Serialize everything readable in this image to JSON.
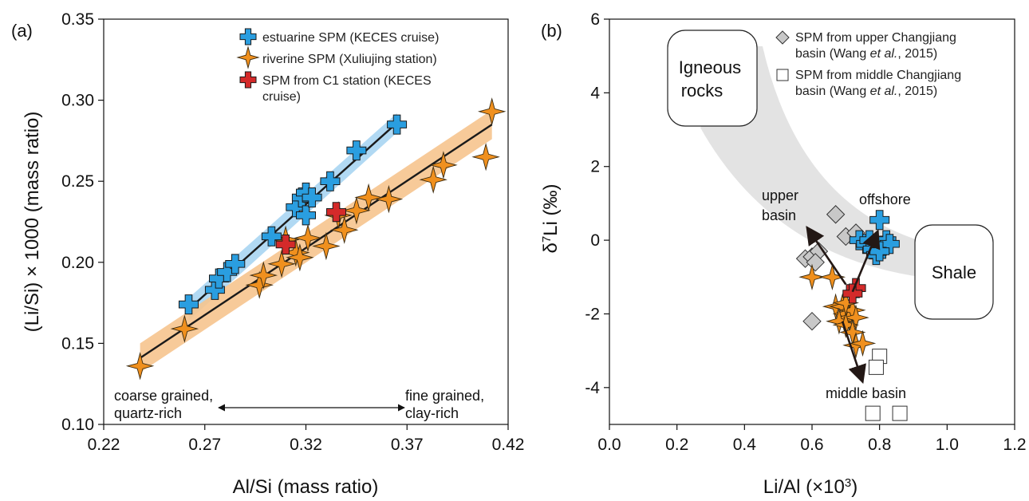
{
  "colors": {
    "estuarine": "#2a9ee0",
    "riverine": "#f0901e",
    "c1": "#d42a2a",
    "upper_basin": "#c8c8c8",
    "middle_basin": "#ffffff",
    "band_blue": "#a8d5f2",
    "band_orange": "#f6c48e",
    "field_gray": "#e3e3e3"
  },
  "chart_data": [
    {
      "type": "scatter",
      "panel_label": "(a)",
      "xlabel": "Al/Si (mass ratio)",
      "ylabel": "(Li/Si) × 1000 (mass ratio)",
      "xlim": [
        0.22,
        0.42
      ],
      "ylim": [
        0.1,
        0.35
      ],
      "xticks": [
        "0.22",
        "0.27",
        "0.32",
        "0.37",
        "0.42"
      ],
      "yticks": [
        "0.10",
        "0.15",
        "0.20",
        "0.25",
        "0.30",
        "0.35"
      ],
      "grid": false,
      "legend_position": "top-right",
      "series": [
        {
          "name": "estuarine SPM (KECES cruise)",
          "marker": "cross",
          "points": [
            [
              0.262,
              0.174
            ],
            [
              0.275,
              0.183
            ],
            [
              0.277,
              0.19
            ],
            [
              0.281,
              0.194
            ],
            [
              0.285,
              0.199
            ],
            [
              0.303,
              0.216
            ],
            [
              0.315,
              0.234
            ],
            [
              0.318,
              0.24
            ],
            [
              0.32,
              0.243
            ],
            [
              0.32,
              0.229
            ],
            [
              0.323,
              0.24
            ],
            [
              0.332,
              0.25
            ],
            [
              0.345,
              0.269
            ],
            [
              0.365,
              0.285
            ]
          ]
        },
        {
          "name": "riverine SPM (Xuliujing station)",
          "marker": "star",
          "points": [
            [
              0.238,
              0.136
            ],
            [
              0.26,
              0.159
            ],
            [
              0.297,
              0.186
            ],
            [
              0.299,
              0.192
            ],
            [
              0.308,
              0.199
            ],
            [
              0.31,
              0.214
            ],
            [
              0.315,
              0.206
            ],
            [
              0.317,
              0.203
            ],
            [
              0.321,
              0.215
            ],
            [
              0.33,
              0.21
            ],
            [
              0.336,
              0.229
            ],
            [
              0.339,
              0.22
            ],
            [
              0.345,
              0.232
            ],
            [
              0.351,
              0.24
            ],
            [
              0.361,
              0.239
            ],
            [
              0.383,
              0.251
            ],
            [
              0.388,
              0.26
            ],
            [
              0.409,
              0.265
            ],
            [
              0.412,
              0.293
            ]
          ]
        },
        {
          "name": "SPM from C1 station (KECES cruise)",
          "marker": "cross",
          "points": [
            [
              0.31,
              0.211
            ],
            [
              0.335,
              0.231
            ]
          ]
        }
      ],
      "fit_lines": [
        {
          "series": "estuarine SPM (KECES cruise)",
          "x": [
            0.262,
            0.365
          ],
          "y": [
            0.171,
            0.286
          ],
          "band": [
            0.007,
            0.006
          ]
        },
        {
          "series": "riverine SPM (Xuliujing station)",
          "x": [
            0.238,
            0.412
          ],
          "y": [
            0.141,
            0.285
          ],
          "band": [
            0.009,
            0.009
          ]
        }
      ],
      "annotations": [
        {
          "line1": "coarse grained,",
          "line2": "quartz-rich"
        },
        {
          "line1": "fine grained,",
          "line2": "clay-rich"
        }
      ]
    },
    {
      "type": "scatter",
      "panel_label": "(b)",
      "xlabel_main": "Li/Al (×10",
      "xlabel_sup": "3",
      "xlabel_end": ")",
      "ylabel_sup": "7",
      "ylabel_main": "δ",
      "ylabel_end": "Li (‰)",
      "xlim": [
        0.0,
        1.2
      ],
      "ylim": [
        -5,
        6
      ],
      "xticks": [
        "0.0",
        "0.2",
        "0.4",
        "0.6",
        "0.8",
        "1.0",
        "1.2"
      ],
      "yticks": [
        "-4",
        "-2",
        "0",
        "2",
        "4",
        "6"
      ],
      "grid": false,
      "legend_position": "top-right",
      "legend": [
        {
          "line1": "SPM from upper Changjiang",
          "line2_a": "basin (Wang ",
          "line2_b": "et al.",
          "line2_c": ", 2015)"
        },
        {
          "line1": "SPM from middle Changjiang",
          "line2_a": "basin (Wang ",
          "line2_b": "et al.",
          "line2_c": ", 2015)"
        }
      ],
      "series": [
        {
          "name": "estuarine",
          "marker": "cross",
          "points": [
            [
              0.8,
              0.55
            ],
            [
              0.74,
              0.0
            ],
            [
              0.76,
              -0.1
            ],
            [
              0.77,
              0.0
            ],
            [
              0.78,
              -0.25
            ],
            [
              0.79,
              -0.4
            ],
            [
              0.81,
              -0.15
            ],
            [
              0.82,
              0.0
            ],
            [
              0.83,
              -0.1
            ],
            [
              0.8,
              -0.3
            ]
          ]
        },
        {
          "name": "riverine",
          "marker": "star",
          "points": [
            [
              0.6,
              -1.0
            ],
            [
              0.66,
              -1.0
            ],
            [
              0.67,
              -1.8
            ],
            [
              0.69,
              -1.8
            ],
            [
              0.7,
              -2.0
            ],
            [
              0.71,
              -2.1
            ],
            [
              0.72,
              -1.9
            ],
            [
              0.73,
              -2.1
            ],
            [
              0.68,
              -2.2
            ],
            [
              0.7,
              -2.3
            ],
            [
              0.72,
              -2.5
            ],
            [
              0.73,
              -2.85
            ],
            [
              0.75,
              -2.8
            ],
            [
              0.7,
              -1.7
            ]
          ]
        },
        {
          "name": "c1",
          "marker": "cross",
          "points": [
            [
              0.73,
              -1.3
            ],
            [
              0.72,
              -1.45
            ]
          ]
        },
        {
          "name": "SPM from upper Changjiang basin (Wang et al., 2015)",
          "marker": "diamond",
          "points": [
            [
              0.67,
              0.7
            ],
            [
              0.7,
              0.1
            ],
            [
              0.73,
              0.2
            ],
            [
              0.58,
              -0.5
            ],
            [
              0.6,
              -0.45
            ],
            [
              0.62,
              -0.3
            ],
            [
              0.61,
              -0.6
            ],
            [
              0.6,
              -2.2
            ]
          ]
        },
        {
          "name": "SPM from middle Changjiang basin (Wang et al., 2015)",
          "marker": "square",
          "points": [
            [
              0.8,
              -3.15
            ],
            [
              0.79,
              -3.45
            ],
            [
              0.78,
              -4.7
            ],
            [
              0.86,
              -4.7
            ]
          ]
        }
      ],
      "arrows": [
        {
          "from": [
            0.7,
            -1.2
          ],
          "to": [
            0.585,
            0.35
          ]
        },
        {
          "from": [
            0.72,
            -1.4
          ],
          "to": [
            0.795,
            0.25
          ]
        },
        {
          "from": [
            0.69,
            -2.2
          ],
          "to": [
            0.75,
            -3.85
          ]
        }
      ],
      "labels": {
        "igneous_1": "Igneous",
        "igneous_2": "rocks",
        "shale": "Shale",
        "offshore": "offshore",
        "upper_1": "upper",
        "upper_2": "basin",
        "middle": "middle basin"
      }
    }
  ]
}
